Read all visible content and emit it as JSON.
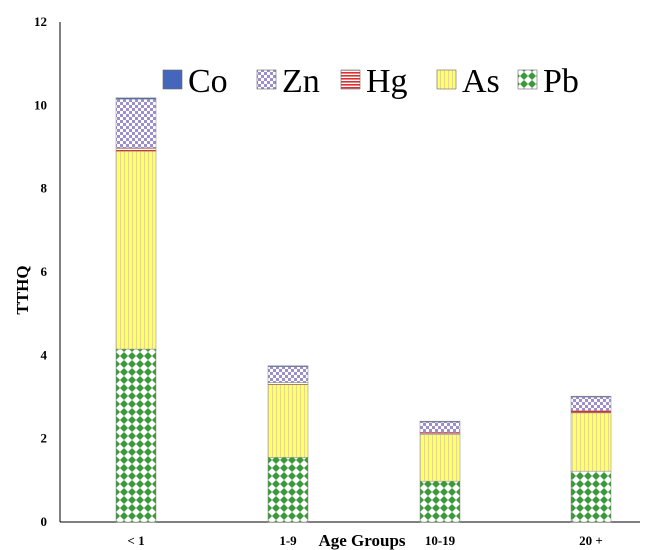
{
  "chart_data": {
    "type": "bar",
    "stacked": true,
    "categories": [
      "< 1",
      "1-9",
      "10-19",
      "20 +"
    ],
    "xlabel": "Age Groups",
    "ylabel": "TTHQ",
    "ylim": [
      0,
      12
    ],
    "yticks": [
      "0",
      "2",
      "4",
      "6",
      "8",
      "10",
      "12"
    ],
    "legend_position": "top",
    "legend_order": [
      "Co",
      "Zn",
      "Hg",
      "As",
      "Pb"
    ],
    "series": [
      {
        "name": "Pb",
        "values": [
          4.15,
          1.55,
          0.98,
          1.22
        ],
        "color": "#3a9a3a",
        "pattern": "diamond-grid"
      },
      {
        "name": "As",
        "values": [
          4.75,
          1.75,
          1.12,
          1.4
        ],
        "color": "#ffff66",
        "pattern": "vertical-lines"
      },
      {
        "name": "Hg",
        "values": [
          0.08,
          0.05,
          0.05,
          0.05
        ],
        "color": "#d93030",
        "pattern": "horizontal-lines"
      },
      {
        "name": "Zn",
        "values": [
          1.17,
          0.38,
          0.25,
          0.33
        ],
        "color": "#9b8fd0",
        "pattern": "checker"
      },
      {
        "name": "Co",
        "values": [
          0.03,
          0.02,
          0.02,
          0.02
        ],
        "color": "#4466bb",
        "pattern": "solid"
      }
    ]
  }
}
